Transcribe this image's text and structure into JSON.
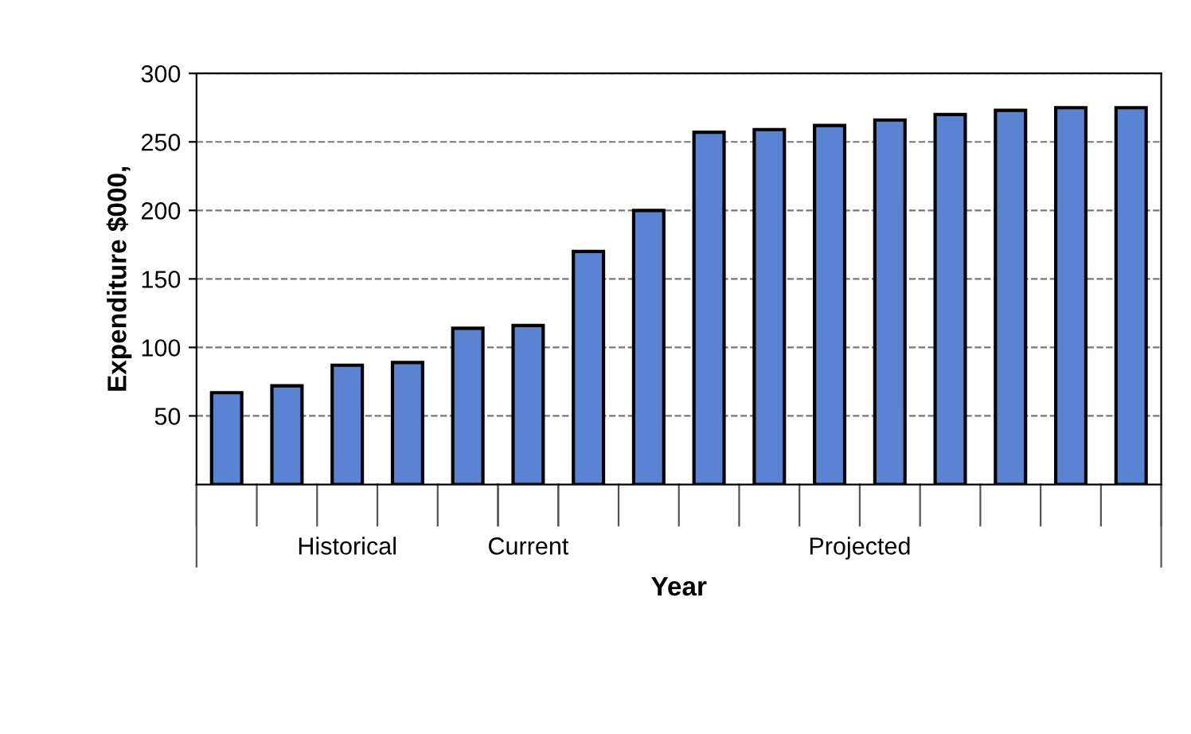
{
  "chart_data": {
    "type": "bar",
    "ylabel": "Expenditure $000,",
    "xlabel": "Year",
    "categories": [
      null,
      null,
      null,
      null,
      null,
      null,
      null,
      null,
      null,
      null,
      null,
      null,
      null,
      null,
      null,
      null
    ],
    "values": [
      67,
      72,
      87,
      89,
      114,
      116,
      170,
      200,
      257,
      259,
      262,
      266,
      270,
      273,
      275,
      275
    ],
    "color": "#5a83d2",
    "ylim": [
      0,
      300
    ],
    "yticks": [
      50,
      100,
      150,
      200,
      250,
      300
    ],
    "grid": "y",
    "annotations": [
      "Historical",
      "Current",
      "Projected"
    ]
  }
}
